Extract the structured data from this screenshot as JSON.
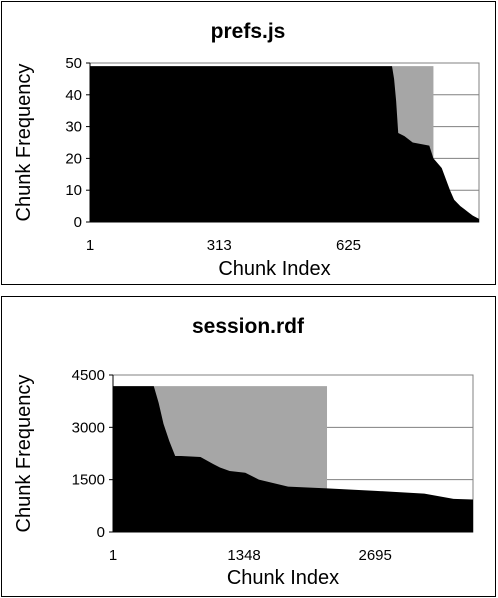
{
  "chart_data": [
    {
      "type": "area",
      "title": "prefs.js",
      "xlabel": "Chunk Index",
      "ylabel": "Chunk Frequency",
      "xticks": [
        "1",
        "313",
        "625"
      ],
      "yticks": [
        "0",
        "10",
        "20",
        "30",
        "40",
        "50"
      ],
      "xlim": [
        1,
        940
      ],
      "ylim": [
        0,
        50
      ],
      "grid": "horizontal",
      "series": [
        {
          "color": "#000000",
          "x": [
            1,
            730,
            735,
            740,
            745,
            760,
            780,
            820,
            830,
            850,
            870,
            880,
            895,
            905,
            915,
            925,
            940
          ],
          "values": [
            49,
            49,
            45,
            38,
            28,
            27,
            25,
            24,
            20,
            17,
            10,
            7,
            5,
            4,
            3,
            2,
            1
          ]
        },
        {
          "color": "#a6a6a6",
          "x": [
            730,
            830
          ],
          "values": [
            49,
            49
          ]
        }
      ]
    },
    {
      "type": "area",
      "title": "session.rdf",
      "xlabel": "Chunk Index",
      "ylabel": "Chunk Frequency",
      "xticks": [
        "1",
        "1348",
        "2695"
      ],
      "yticks": [
        "0",
        "1500",
        "3000",
        "4500"
      ],
      "xlim": [
        1,
        3700
      ],
      "ylim": [
        0,
        4500
      ],
      "grid": "horizontal",
      "series": [
        {
          "color": "#000000",
          "x": [
            1,
            420,
            470,
            520,
            580,
            640,
            700,
            900,
            1030,
            1100,
            1200,
            1360,
            1500,
            1800,
            2200,
            2700,
            3200,
            3500,
            3700
          ],
          "values": [
            4180,
            4180,
            3700,
            3100,
            2600,
            2180,
            2180,
            2150,
            1950,
            1850,
            1750,
            1700,
            1500,
            1300,
            1250,
            1180,
            1100,
            950,
            930
          ]
        },
        {
          "color": "#a6a6a6",
          "x": [
            420,
            2200
          ],
          "values": [
            4180,
            4180
          ]
        }
      ]
    }
  ]
}
